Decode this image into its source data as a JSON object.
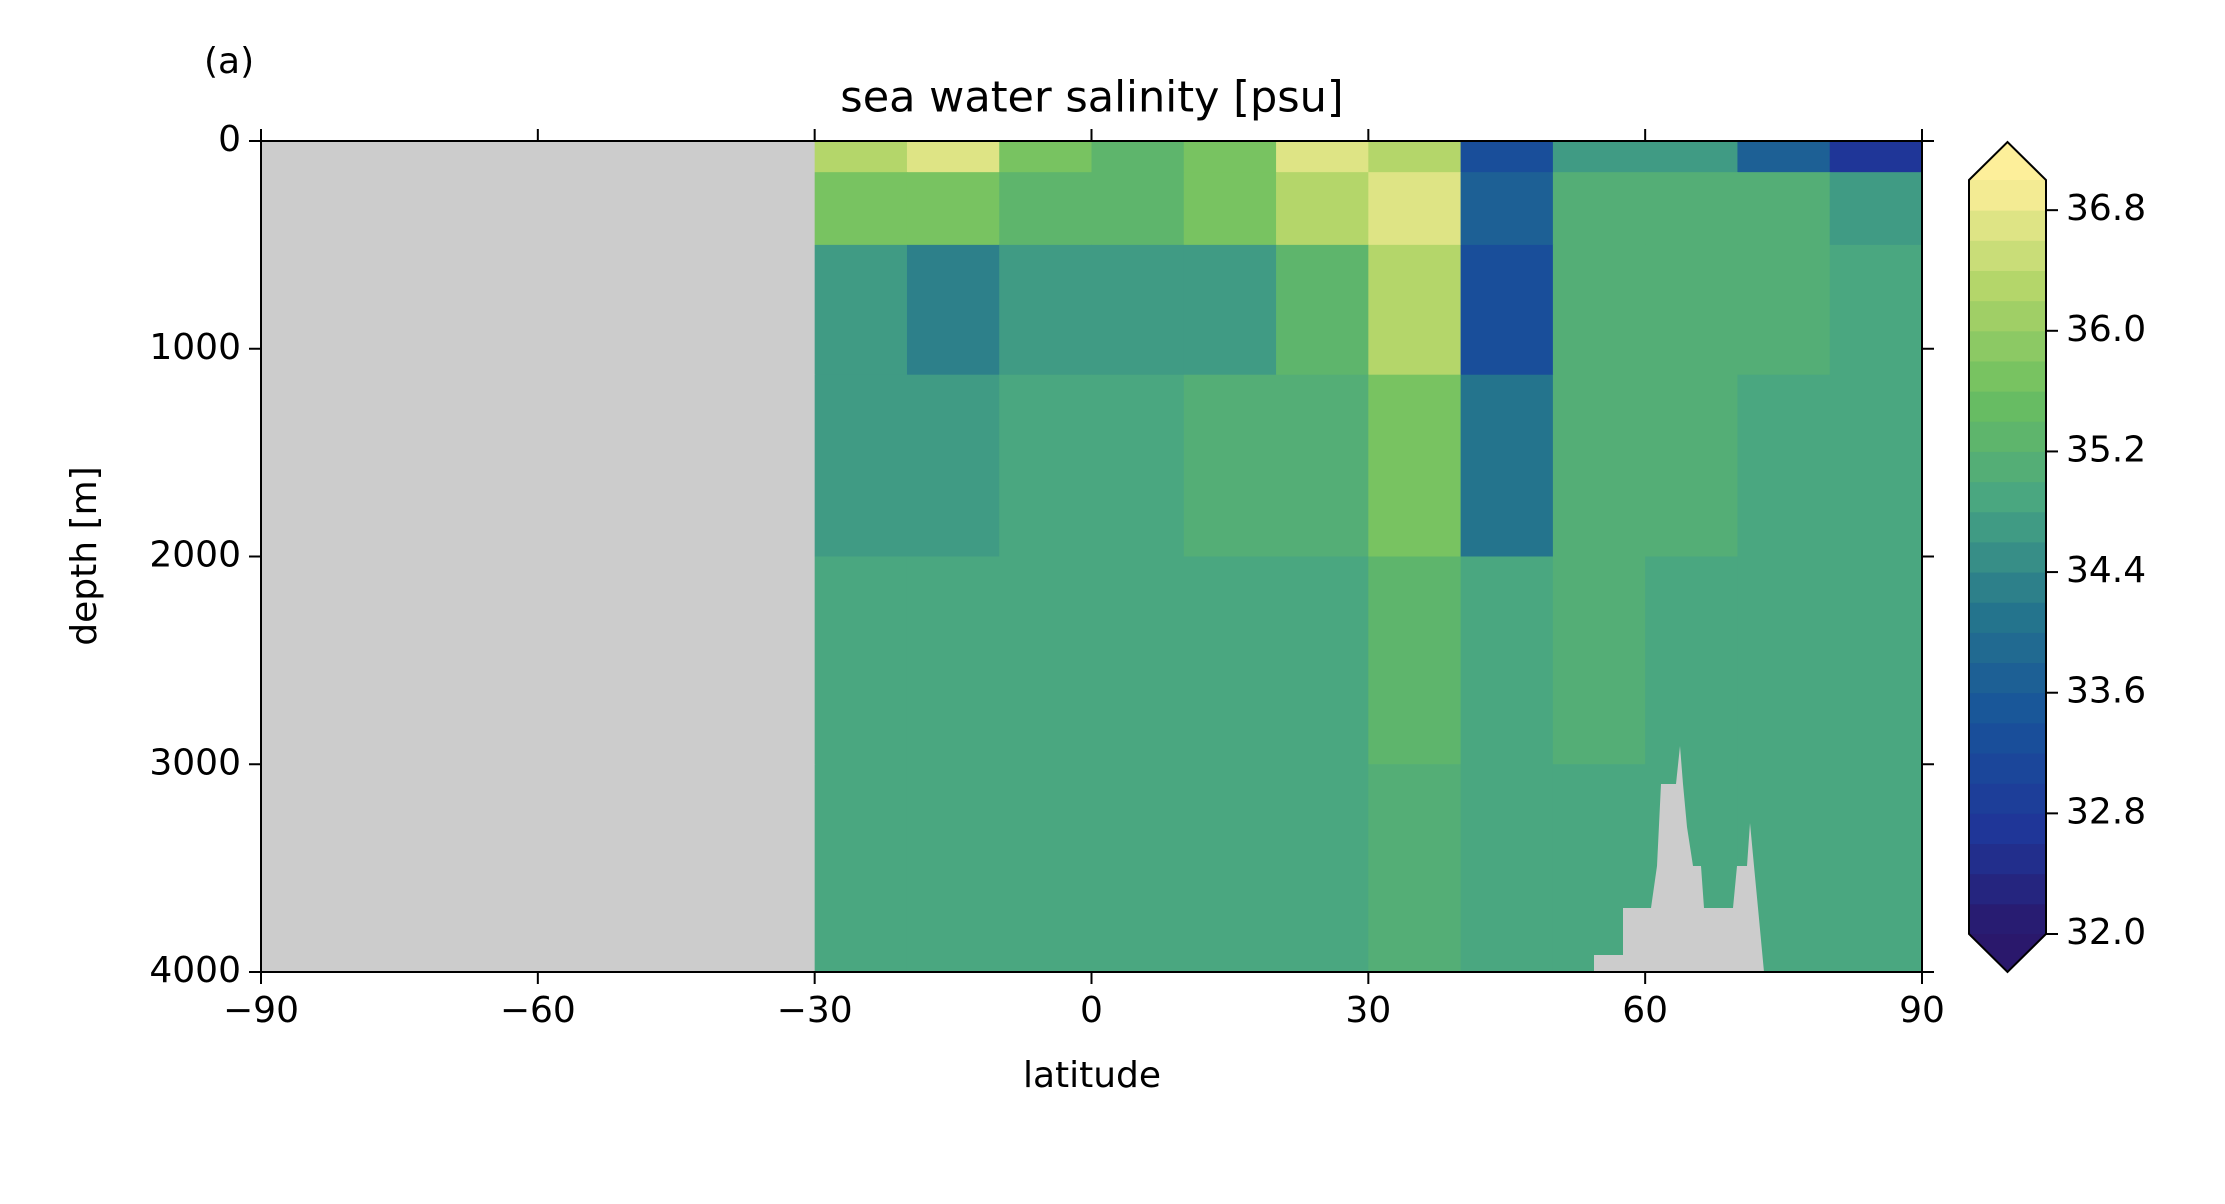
{
  "chart_data": {
    "type": "heatmap",
    "panel_label": "(a)",
    "title": "sea water salinity [psu]",
    "x_label": "latitude",
    "y_label": "depth [m]",
    "x": [
      -85,
      -75,
      -65,
      -55,
      -45,
      -35,
      -25,
      -15,
      -5,
      5,
      15,
      25,
      35,
      45,
      55,
      65,
      75,
      85
    ],
    "y": [
      50,
      250,
      750,
      1500,
      2500,
      3500
    ],
    "values": [
      [
        null,
        null,
        null,
        null,
        null,
        null,
        36.2,
        36.6,
        35.8,
        35.2,
        35.8,
        36.6,
        36.4,
        33.4,
        34.8,
        34.6,
        33.8,
        32.8
      ],
      [
        null,
        null,
        null,
        null,
        null,
        null,
        35.6,
        35.8,
        35.4,
        35.4,
        35.8,
        36.2,
        36.6,
        33.6,
        35.0,
        35.0,
        35.0,
        34.8
      ],
      [
        null,
        null,
        null,
        null,
        null,
        null,
        34.6,
        34.4,
        34.6,
        34.6,
        34.8,
        35.2,
        36.2,
        33.4,
        35.0,
        35.0,
        35.0,
        34.9
      ],
      [
        null,
        null,
        null,
        null,
        null,
        null,
        34.8,
        34.8,
        34.9,
        34.9,
        35.0,
        35.0,
        35.6,
        34.0,
        35.0,
        35.0,
        34.9,
        34.9
      ],
      [
        null,
        null,
        null,
        null,
        null,
        null,
        34.9,
        34.9,
        34.9,
        34.9,
        34.9,
        34.9,
        35.2,
        34.9,
        35.0,
        34.95,
        34.9,
        34.9
      ],
      [
        null,
        null,
        null,
        null,
        null,
        null,
        34.9,
        34.9,
        34.9,
        34.9,
        34.9,
        34.9,
        35.0,
        34.9,
        34.9,
        34.9,
        34.9,
        34.9
      ]
    ],
    "xlim": [
      -90,
      90
    ],
    "xticks": [
      {
        "value": -90,
        "label": "−90"
      },
      {
        "value": -60,
        "label": "−60"
      },
      {
        "value": -30,
        "label": "−30"
      },
      0,
      30,
      60,
      90
    ],
    "ylim": [
      0,
      4000
    ],
    "y_inverted": true,
    "yticks": [
      0,
      1000,
      2000,
      3000,
      4000
    ],
    "clim": [
      32,
      37
    ],
    "clevel_step": 0.2,
    "colorbar_extend": "both",
    "cticks": [
      {
        "value": 32,
        "label": "32.0"
      },
      32.8,
      33.6,
      34.4,
      35.2,
      {
        "value": 36,
        "label": "36.0"
      },
      36.8
    ],
    "colormap": [
      "#2a186c",
      "#1f3799",
      "#18539a",
      "#25768c",
      "#48a582",
      "#6bbf5f",
      "#b3d569",
      "#fdef9a"
    ],
    "land_color": "#cccccc"
  }
}
